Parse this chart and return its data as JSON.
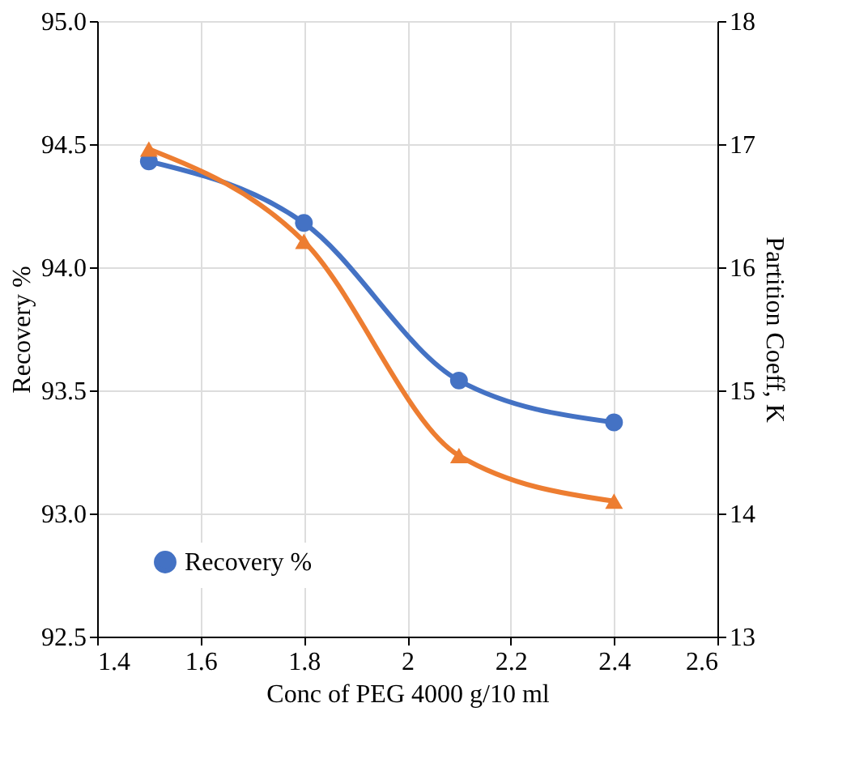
{
  "chart_data": {
    "type": "line",
    "xlabel": "Conc of PEG 4000 g/10 ml",
    "ylabel": "Recovery %",
    "y2label": "Partition Coeff, K",
    "x": [
      1.5,
      1.8,
      2.1,
      2.4
    ],
    "series": [
      {
        "name": "Recovery %",
        "color": "#4472c4",
        "values": [
          94.43,
          94.18,
          93.54,
          93.37
        ],
        "marker": "circle"
      },
      {
        "color": "#ed7d31",
        "values": [
          16.96,
          16.21,
          14.47,
          14.1
        ],
        "axis": "y2",
        "marker": "triangle"
      }
    ],
    "xlim": [
      1.4,
      2.6
    ],
    "xticks": [
      1.4,
      1.6,
      1.8,
      {
        "value": 2,
        "label": "2"
      },
      2.2,
      2.4,
      2.6
    ],
    "ylim": [
      92.5,
      95.0
    ],
    "yticks": [
      {
        "value": 92.5,
        "label": "92.5"
      },
      {
        "value": 93.0,
        "label": "93.0"
      },
      {
        "value": 93.5,
        "label": "93.5"
      },
      {
        "value": 94.0,
        "label": "94.0"
      },
      {
        "value": 94.5,
        "label": "94.5"
      },
      {
        "value": 95.0,
        "label": "95.0"
      }
    ],
    "y2lim": [
      13,
      18
    ],
    "y2ticks": [
      13,
      14,
      15,
      16,
      17,
      18
    ],
    "grid": true,
    "legend": "bottom left",
    "line_style": "solid"
  }
}
